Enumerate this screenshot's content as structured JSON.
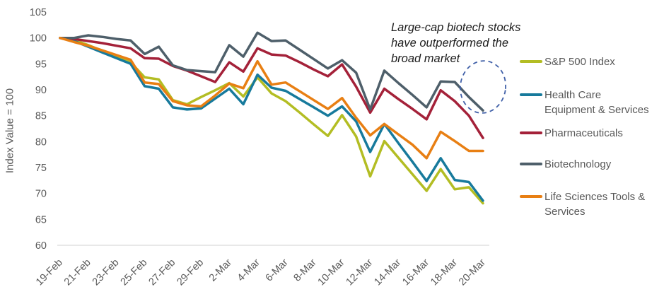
{
  "y_axis": {
    "title": "Index Value = 100",
    "tick_color": "#595959"
  },
  "x_axis": {
    "line_color": "#d9d9d9",
    "tick_color": "#595959"
  },
  "annotation": {
    "lines": [
      "Large-cap biotech stocks",
      "have outperformed the",
      "broad market"
    ],
    "color": "#1c1c1c"
  },
  "highlight": {
    "shape": "dashed-ellipse",
    "color": "#4060a8",
    "marks": "Biotechnology line at 20-Mar"
  },
  "chart_data": {
    "type": "line",
    "title": "",
    "xlabel": "",
    "ylabel": "Index Value = 100",
    "ylim": [
      60,
      105
    ],
    "ytick_step": 5,
    "grid": false,
    "legend_position": "right",
    "annotation": "Large-cap biotech stocks have outperformed the broad market",
    "x": [
      "19-Feb",
      "20-Feb",
      "21-Feb",
      "22-Feb",
      "23-Feb",
      "24-Feb",
      "25-Feb",
      "26-Feb",
      "27-Feb",
      "28-Feb",
      "29-Feb",
      "1-Mar",
      "2-Mar",
      "3-Mar",
      "4-Mar",
      "5-Mar",
      "6-Mar",
      "7-Mar",
      "8-Mar",
      "9-Mar",
      "10-Mar",
      "11-Mar",
      "12-Mar",
      "13-Mar",
      "14-Mar",
      "15-Mar",
      "16-Mar",
      "17-Mar",
      "18-Mar",
      "19-Mar",
      "20-Mar"
    ],
    "x_tick_labels": [
      "19-Feb",
      "21-Feb",
      "23-Feb",
      "25-Feb",
      "27-Feb",
      "29-Feb",
      "2-Mar",
      "4-Mar",
      "6-Mar",
      "8-Mar",
      "10-Mar",
      "12-Mar",
      "14-Mar",
      "16-Mar",
      "18-Mar",
      "20-Mar"
    ],
    "series": [
      {
        "name": "S&P 500 Index",
        "label_lines": [
          "S&P 500 Index"
        ],
        "color": "#b3bd23",
        "values": [
          100,
          99.6,
          98.6,
          97.5,
          96.4,
          95.3,
          92.4,
          92.0,
          88.0,
          87.2,
          88.6,
          89.9,
          91.3,
          88.7,
          92.4,
          89.3,
          87.8,
          85.6,
          83.3,
          81.1,
          85.1,
          81.0,
          73.3,
          80.1,
          76.9,
          73.7,
          70.5,
          74.7,
          70.8,
          71.2,
          68.1
        ]
      },
      {
        "name": "Health Care Equipment & Services",
        "label_lines": [
          "Health Care",
          "Equipment & Services"
        ],
        "color": "#177a9c",
        "values": [
          100,
          99.4,
          98.3,
          97.2,
          96.1,
          95.0,
          90.7,
          90.2,
          86.6,
          86.2,
          86.4,
          88.3,
          90.2,
          87.2,
          92.9,
          90.4,
          89.8,
          88.2,
          86.6,
          85.0,
          86.8,
          83.9,
          78.0,
          83.4,
          79.7,
          76.1,
          72.4,
          76.8,
          72.6,
          72.2,
          68.6
        ]
      },
      {
        "name": "Pharmaceuticals",
        "label_lines": [
          "Pharmaceuticals"
        ],
        "color": "#a42139",
        "values": [
          100,
          99.8,
          99.4,
          99.0,
          98.5,
          98.0,
          96.1,
          96.0,
          94.6,
          93.7,
          92.6,
          91.5,
          95.3,
          93.5,
          98.0,
          96.8,
          96.6,
          95.3,
          93.9,
          92.6,
          94.9,
          90.6,
          85.6,
          90.2,
          88.2,
          86.3,
          84.3,
          89.9,
          87.8,
          85.0,
          80.7
        ]
      },
      {
        "name": "Biotechnology",
        "label_lines": [
          "Biotechnology"
        ],
        "color": "#4e5f6a",
        "values": [
          100,
          100.0,
          100.5,
          100.2,
          99.8,
          99.5,
          96.9,
          98.3,
          94.7,
          93.8,
          93.6,
          93.4,
          98.6,
          96.4,
          101.0,
          99.4,
          99.5,
          97.7,
          95.9,
          94.1,
          95.7,
          93.3,
          86.2,
          93.7,
          91.3,
          89.0,
          86.6,
          91.6,
          91.5,
          88.6,
          86.0
        ]
      },
      {
        "name": "Life Sciences Tools & Services",
        "label_lines": [
          "Life Sciences Tools &",
          "Services"
        ],
        "color": "#e87f13",
        "values": [
          100,
          99.2,
          98.5,
          97.6,
          96.7,
          95.8,
          91.4,
          91.1,
          87.8,
          87.0,
          86.8,
          88.9,
          91.2,
          90.3,
          95.5,
          91.0,
          91.4,
          89.7,
          88.0,
          86.3,
          88.4,
          84.6,
          81.2,
          83.4,
          81.4,
          79.4,
          76.8,
          81.9,
          80.1,
          78.2,
          78.2
        ]
      }
    ]
  }
}
